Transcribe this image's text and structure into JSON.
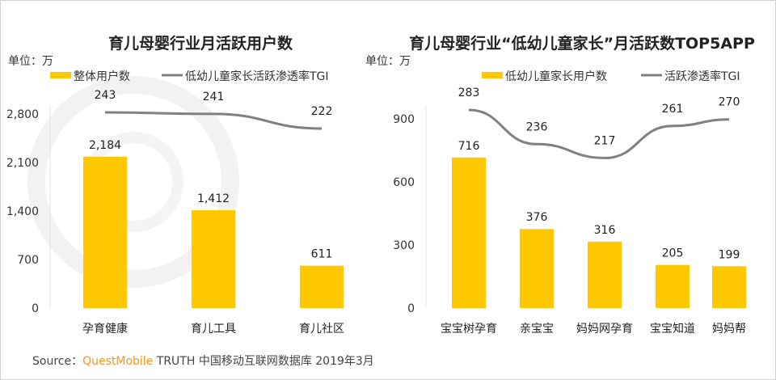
{
  "watermark": "QUESTMOBILE",
  "source": {
    "prefix": "Source：",
    "brand": "QuestMobile",
    "rest": " TRUTH 中国移动互联网数据库 2019年3月"
  },
  "colors": {
    "bar": "#FFC800",
    "line": "#808080"
  },
  "chart_data": [
    {
      "type": "bar",
      "title": "育儿母婴行业月活跃用户数",
      "unit": "单位：万",
      "categories": [
        "孕育健康",
        "育儿工具",
        "育儿社区"
      ],
      "series": [
        {
          "name": "整体用户数",
          "type": "bar",
          "values": [
            2184,
            1412,
            611
          ],
          "labels": [
            "2,184",
            "1,412",
            "611"
          ]
        },
        {
          "name": "低幼儿童家长活跃渗透率TGI",
          "type": "line",
          "values": [
            243,
            241,
            222
          ],
          "labels": [
            "243",
            "241",
            "222"
          ]
        }
      ],
      "yticks": [
        "0",
        "700",
        "1,400",
        "2,100",
        "2,800"
      ],
      "ylim": [
        0,
        2800
      ],
      "legend": "top"
    },
    {
      "type": "bar",
      "title": "育儿母婴行业“低幼儿童家长”月活跃数TOP5APP",
      "unit": "单位：万",
      "categories": [
        "宝宝树孕育",
        "亲宝宝",
        "妈妈网孕育",
        "宝宝知道",
        "妈妈帮"
      ],
      "series": [
        {
          "name": "低幼儿童家长用户数",
          "type": "bar",
          "values": [
            716,
            376,
            316,
            205,
            199
          ],
          "labels": [
            "716",
            "376",
            "316",
            "205",
            "199"
          ]
        },
        {
          "name": "活跃渗透率TGI",
          "type": "line",
          "values": [
            283,
            236,
            217,
            261,
            270
          ],
          "labels": [
            "283",
            "236",
            "217",
            "261",
            "270"
          ]
        }
      ],
      "yticks": [
        "0",
        "300",
        "600",
        "900"
      ],
      "ylim": [
        0,
        900
      ],
      "legend": "top"
    }
  ]
}
